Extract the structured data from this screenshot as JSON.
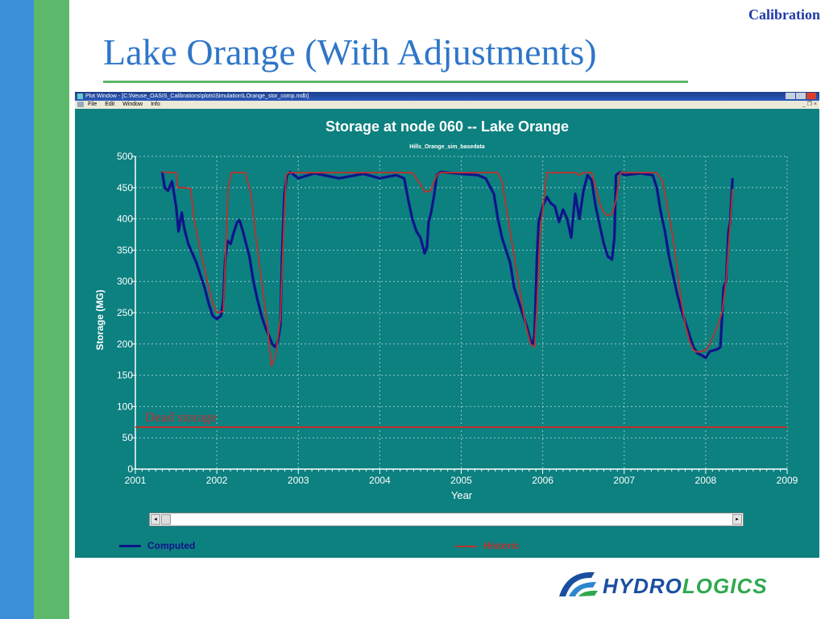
{
  "slide": {
    "corner_label": "Calibration",
    "title": "Lake Orange (With Adjustments)",
    "colors": {
      "left_bar_blue": "#3b8fd9",
      "left_bar_green": "#5cb86a",
      "title": "#2f76c8",
      "corner": "#1f3aa6"
    }
  },
  "window": {
    "title": "Plot Window - [C:\\Neuse_OASIS_Calibrations\\plots\\Simulation\\LOrange_stor_comp.mdb]",
    "menu": [
      "File",
      "Edit",
      "Window",
      "Info"
    ],
    "buttons_glyph": "_ ❐ ×",
    "background": "#0d8080"
  },
  "chart_data": {
    "type": "line",
    "title": "Storage at node 060 -- Lake Orange",
    "subtitle": "Hills_Orange_sim_basedata",
    "xlabel": "Year",
    "ylabel": "Storage (MG)",
    "xlim": [
      2001,
      2009
    ],
    "ylim": [
      0,
      500
    ],
    "xticks": [
      2001,
      2002,
      2003,
      2004,
      2005,
      2006,
      2007,
      2008,
      2009
    ],
    "yticks": [
      0,
      50,
      100,
      150,
      200,
      250,
      300,
      350,
      400,
      450,
      500
    ],
    "grid": true,
    "legend_position": "bottom",
    "reference_line": {
      "label": "Dead storage",
      "y": 67,
      "color": "#c0302a"
    },
    "series": [
      {
        "name": "Computed",
        "color": "#10148a",
        "points": [
          [
            2001.33,
            475
          ],
          [
            2001.36,
            450
          ],
          [
            2001.4,
            445
          ],
          [
            2001.45,
            460
          ],
          [
            2001.5,
            420
          ],
          [
            2001.53,
            380
          ],
          [
            2001.57,
            410
          ],
          [
            2001.6,
            385
          ],
          [
            2001.65,
            360
          ],
          [
            2001.7,
            345
          ],
          [
            2001.75,
            330
          ],
          [
            2001.8,
            310
          ],
          [
            2001.85,
            290
          ],
          [
            2001.9,
            265
          ],
          [
            2001.95,
            245
          ],
          [
            2002.0,
            240
          ],
          [
            2002.05,
            245
          ],
          [
            2002.08,
            270
          ],
          [
            2002.1,
            330
          ],
          [
            2002.13,
            365
          ],
          [
            2002.17,
            360
          ],
          [
            2002.2,
            375
          ],
          [
            2002.25,
            395
          ],
          [
            2002.28,
            398
          ],
          [
            2002.32,
            380
          ],
          [
            2002.36,
            360
          ],
          [
            2002.4,
            340
          ],
          [
            2002.45,
            300
          ],
          [
            2002.5,
            270
          ],
          [
            2002.55,
            245
          ],
          [
            2002.6,
            225
          ],
          [
            2002.65,
            210
          ],
          [
            2002.68,
            200
          ],
          [
            2002.72,
            195
          ],
          [
            2002.75,
            205
          ],
          [
            2002.78,
            230
          ],
          [
            2002.8,
            340
          ],
          [
            2002.83,
            440
          ],
          [
            2002.86,
            470
          ],
          [
            2002.9,
            475
          ],
          [
            2003.0,
            465
          ],
          [
            2003.2,
            473
          ],
          [
            2003.5,
            465
          ],
          [
            2003.8,
            472
          ],
          [
            2004.0,
            465
          ],
          [
            2004.2,
            470
          ],
          [
            2004.3,
            465
          ],
          [
            2004.35,
            430
          ],
          [
            2004.4,
            400
          ],
          [
            2004.45,
            380
          ],
          [
            2004.5,
            370
          ],
          [
            2004.55,
            345
          ],
          [
            2004.58,
            355
          ],
          [
            2004.6,
            395
          ],
          [
            2004.63,
            410
          ],
          [
            2004.67,
            440
          ],
          [
            2004.7,
            470
          ],
          [
            2004.75,
            475
          ],
          [
            2005.0,
            472
          ],
          [
            2005.2,
            470
          ],
          [
            2005.3,
            465
          ],
          [
            2005.4,
            440
          ],
          [
            2005.45,
            400
          ],
          [
            2005.5,
            370
          ],
          [
            2005.55,
            350
          ],
          [
            2005.6,
            330
          ],
          [
            2005.65,
            290
          ],
          [
            2005.7,
            270
          ],
          [
            2005.75,
            250
          ],
          [
            2005.8,
            230
          ],
          [
            2005.85,
            205
          ],
          [
            2005.88,
            200
          ],
          [
            2005.9,
            215
          ],
          [
            2005.93,
            340
          ],
          [
            2005.95,
            395
          ],
          [
            2006.0,
            420
          ],
          [
            2006.05,
            435
          ],
          [
            2006.1,
            425
          ],
          [
            2006.15,
            420
          ],
          [
            2006.2,
            395
          ],
          [
            2006.25,
            415
          ],
          [
            2006.3,
            400
          ],
          [
            2006.35,
            370
          ],
          [
            2006.4,
            440
          ],
          [
            2006.45,
            400
          ],
          [
            2006.5,
            445
          ],
          [
            2006.55,
            470
          ],
          [
            2006.6,
            462
          ],
          [
            2006.65,
            420
          ],
          [
            2006.7,
            390
          ],
          [
            2006.75,
            360
          ],
          [
            2006.8,
            340
          ],
          [
            2006.85,
            335
          ],
          [
            2006.88,
            370
          ],
          [
            2006.9,
            470
          ],
          [
            2006.95,
            475
          ],
          [
            2007.0,
            470
          ],
          [
            2007.2,
            473
          ],
          [
            2007.35,
            470
          ],
          [
            2007.4,
            450
          ],
          [
            2007.45,
            410
          ],
          [
            2007.5,
            380
          ],
          [
            2007.55,
            340
          ],
          [
            2007.6,
            310
          ],
          [
            2007.65,
            280
          ],
          [
            2007.7,
            255
          ],
          [
            2007.75,
            235
          ],
          [
            2007.8,
            215
          ],
          [
            2007.85,
            195
          ],
          [
            2007.9,
            185
          ],
          [
            2007.95,
            182
          ],
          [
            2008.0,
            178
          ],
          [
            2008.05,
            188
          ],
          [
            2008.1,
            190
          ],
          [
            2008.15,
            192
          ],
          [
            2008.18,
            195
          ],
          [
            2008.2,
            240
          ],
          [
            2008.22,
            290
          ],
          [
            2008.25,
            300
          ],
          [
            2008.28,
            380
          ],
          [
            2008.3,
            395
          ],
          [
            2008.33,
            465
          ]
        ]
      },
      {
        "name": "Historic",
        "color": "#c0302a",
        "points": [
          [
            2001.33,
            475
          ],
          [
            2001.4,
            474
          ],
          [
            2001.5,
            474
          ],
          [
            2001.52,
            450
          ],
          [
            2001.6,
            450
          ],
          [
            2001.68,
            448
          ],
          [
            2001.72,
            400
          ],
          [
            2001.78,
            360
          ],
          [
            2001.85,
            320
          ],
          [
            2001.9,
            290
          ],
          [
            2001.95,
            265
          ],
          [
            2002.0,
            250
          ],
          [
            2002.08,
            252
          ],
          [
            2002.1,
            320
          ],
          [
            2002.14,
            450
          ],
          [
            2002.18,
            474
          ],
          [
            2002.35,
            474
          ],
          [
            2002.42,
            440
          ],
          [
            2002.48,
            370
          ],
          [
            2002.55,
            300
          ],
          [
            2002.62,
            230
          ],
          [
            2002.67,
            165
          ],
          [
            2002.72,
            180
          ],
          [
            2002.78,
            240
          ],
          [
            2002.82,
            380
          ],
          [
            2002.85,
            470
          ],
          [
            2002.88,
            474
          ],
          [
            2003.0,
            474
          ],
          [
            2003.5,
            474
          ],
          [
            2004.0,
            474
          ],
          [
            2004.4,
            474
          ],
          [
            2004.5,
            455
          ],
          [
            2004.55,
            443
          ],
          [
            2004.62,
            445
          ],
          [
            2004.7,
            470
          ],
          [
            2004.75,
            474
          ],
          [
            2005.0,
            474
          ],
          [
            2005.45,
            474
          ],
          [
            2005.5,
            460
          ],
          [
            2005.55,
            420
          ],
          [
            2005.6,
            380
          ],
          [
            2005.65,
            340
          ],
          [
            2005.7,
            300
          ],
          [
            2005.75,
            260
          ],
          [
            2005.8,
            225
          ],
          [
            2005.85,
            200
          ],
          [
            2005.9,
            195
          ],
          [
            2005.93,
            260
          ],
          [
            2005.97,
            380
          ],
          [
            2006.05,
            474
          ],
          [
            2006.4,
            474
          ],
          [
            2006.45,
            470
          ],
          [
            2006.5,
            474
          ],
          [
            2006.6,
            474
          ],
          [
            2006.65,
            450
          ],
          [
            2006.7,
            425
          ],
          [
            2006.75,
            410
          ],
          [
            2006.8,
            405
          ],
          [
            2006.85,
            408
          ],
          [
            2006.9,
            430
          ],
          [
            2006.95,
            474
          ],
          [
            2007.0,
            474
          ],
          [
            2007.4,
            474
          ],
          [
            2007.47,
            460
          ],
          [
            2007.53,
            420
          ],
          [
            2007.6,
            370
          ],
          [
            2007.65,
            320
          ],
          [
            2007.7,
            270
          ],
          [
            2007.75,
            230
          ],
          [
            2007.8,
            205
          ],
          [
            2007.85,
            190
          ],
          [
            2007.9,
            187
          ],
          [
            2007.95,
            188
          ],
          [
            2008.0,
            190
          ],
          [
            2008.05,
            200
          ],
          [
            2008.1,
            215
          ],
          [
            2008.15,
            230
          ],
          [
            2008.2,
            250
          ],
          [
            2008.25,
            300
          ],
          [
            2008.3,
            390
          ],
          [
            2008.33,
            448
          ]
        ]
      }
    ]
  },
  "logo": {
    "text_part1": "HYDRO",
    "text_part2": "LOGICS",
    "color_part1": "#1a4fa0",
    "color_part2": "#2fa84f"
  }
}
